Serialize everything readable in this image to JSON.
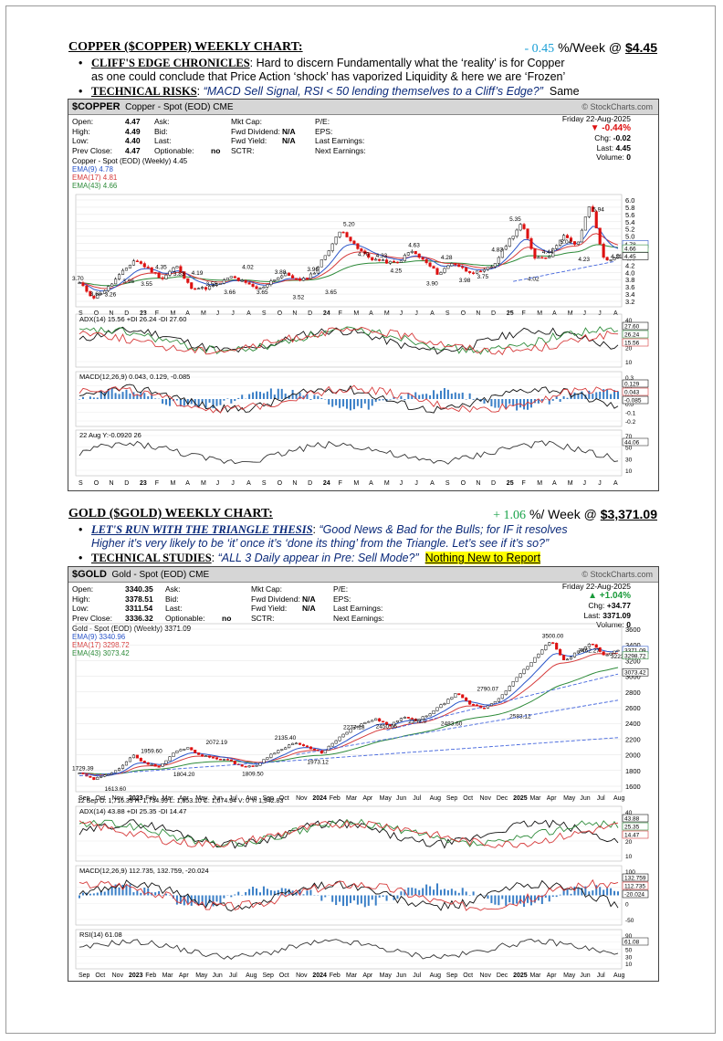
{
  "copper": {
    "section_title": "COPPER ($COPPER) WEEKLY CHART",
    "colon": ":",
    "change": "- 0.45",
    "per_week": "%/Week @ ",
    "price": "$4.45",
    "bullets": [
      {
        "head": "CLIFF'S EDGE CHRONICLES",
        "text": ": Hard to discern Fundamentally what the ‘reality’ is for Copper",
        "text2": "as one could conclude that Price Action ‘shock’ has vaporized Liquidity & here we are ‘Frozen’"
      },
      {
        "head": "TECHNICAL RISKS",
        "colon": ":",
        "quote": "“MACD Sell Signal, RSI < 50 lending themselves to a Cliff’s Edge?”",
        "tail": "Same"
      }
    ],
    "chart": {
      "symbol": "$COPPER",
      "name": "Copper - Spot (EOD) CME",
      "stockcharts": "© StockCharts.com",
      "info_col1": [
        [
          "Open:",
          "4.47"
        ],
        [
          "High:",
          "4.49"
        ],
        [
          "Low:",
          "4.40"
        ],
        [
          "Prev Close:",
          "4.47"
        ]
      ],
      "info_col2": [
        [
          "Ask:",
          ""
        ],
        [
          "Bid:",
          ""
        ],
        [
          "Last:",
          ""
        ],
        [
          "Optionable:",
          "no"
        ]
      ],
      "info_col3": [
        [
          "Mkt Cap:",
          ""
        ],
        [
          "Fwd Dividend:",
          "N/A"
        ],
        [
          "Fwd Yield:",
          "N/A"
        ],
        [
          "SCTR:",
          ""
        ]
      ],
      "info_col4": [
        "P/E:",
        "EPS:",
        "Last Earnings:",
        "Next Earnings:"
      ],
      "date": "Friday  22-Aug-2025",
      "chg_pct": "▼ -0.44%",
      "chg_label": "Chg:",
      "chg_val": "-0.02",
      "last_label": "Last:",
      "last_val": "4.45",
      "vol_label": "Volume:",
      "vol_val": "0",
      "legend_title": "Copper - Spot (EOD) (Weekly) 4.45",
      "legend": [
        {
          "label": "EMA(9) 4.78",
          "color": "#2a55c9"
        },
        {
          "label": "EMA(17) 4.81",
          "color": "#d63a3a"
        },
        {
          "label": "EMA(43) 4.66",
          "color": "#2e8b3a"
        }
      ],
      "price_axis": [
        "6.0",
        "5.8",
        "5.6",
        "5.4",
        "5.2",
        "5.0",
        "4.8",
        "4.6",
        "4.4",
        "4.2",
        "4.0",
        "3.8",
        "3.6",
        "3.4",
        "3.2"
      ],
      "right_tags": [
        "4.78",
        "4.66",
        "4.45"
      ],
      "annotations": [
        "3.70",
        "3.60",
        "3.26",
        "3.96",
        "3.55",
        "4.35",
        "3.83",
        "4.19",
        "3.55",
        "3.66",
        "4.02",
        "3.65",
        "3.88",
        "3.52",
        "3.96",
        "3.65",
        "5.20",
        "4.70",
        "4.33",
        "4.25",
        "4.63",
        "3.90",
        "4.28",
        "3.98",
        "3.75",
        "4.83",
        "5.35",
        "4.02",
        "4.44",
        "5.04",
        "4.23",
        "5.94",
        "4.31"
      ],
      "months": [
        "S",
        "O",
        "N",
        "D",
        "23",
        "F",
        "M",
        "A",
        "M",
        "J",
        "J",
        "A",
        "S",
        "O",
        "N",
        "D",
        "24",
        "F",
        "M",
        "A",
        "M",
        "J",
        "J",
        "A",
        "S",
        "O",
        "N",
        "D",
        "25",
        "F",
        "M",
        "A",
        "M",
        "J",
        "J",
        "A"
      ],
      "adx": {
        "label": "ADX(14) 15.56",
        "plus": "+DI 26.24",
        "minus": "-DI 27.60",
        "axis": [
          "40",
          "30",
          "20",
          "10"
        ],
        "tags": [
          "27.60",
          "26.24",
          "15.56"
        ]
      },
      "macd": {
        "label": "MACD(12,26,9) 0.043,",
        "signal": "0.129,",
        "hist": "-0.085",
        "axis": [
          "0.3",
          "0.2",
          "0.1",
          "0.0",
          "-0.1",
          "-0.2"
        ],
        "tags": [
          "0.129",
          "0.043",
          "-0.085"
        ]
      },
      "rsi": {
        "label": "22 Aug Y:-0.0920 26",
        "axis": [
          "70",
          "50",
          "30",
          "10"
        ],
        "tag": "44.06"
      }
    }
  },
  "gold": {
    "section_title": "GOLD ($GOLD) WEEKLY CHART:",
    "change": "+ 1.06",
    "per_week": "%/ Week @ ",
    "price": "$3,371.09",
    "bullets": [
      {
        "head": "LET'S RUN WITH THE TRIANGLE THESIS",
        "colon": ":",
        "quote": "“Good News & Bad for the Bulls; for IF it resolves",
        "quote2": "Higher it’s very likely to be ‘it’ once it’s ‘done its thing’ from the Triangle. Let’s see if it’s so?”"
      },
      {
        "head": "TECHNICAL STUDIES",
        "colon": ":",
        "quote": "“ALL 3 Daily appear in Pre: Sell Mode?”",
        "highlight": "Nothing New to Report"
      }
    ],
    "chart": {
      "symbol": "$GOLD",
      "name": "Gold - Spot (EOD) CME",
      "stockcharts": "© StockCharts.com",
      "info_col1": [
        [
          "Open:",
          "3340.35"
        ],
        [
          "High:",
          "3378.51"
        ],
        [
          "Low:",
          "3311.54"
        ],
        [
          "Prev Close:",
          "3336.32"
        ]
      ],
      "info_col2": [
        [
          "Ask:",
          ""
        ],
        [
          "Bid:",
          ""
        ],
        [
          "Last:",
          ""
        ],
        [
          "Optionable:",
          "no"
        ]
      ],
      "info_col3": [
        [
          "Mkt Cap:",
          ""
        ],
        [
          "Fwd Dividend:",
          "N/A"
        ],
        [
          "Fwd Yield:",
          "N/A"
        ],
        [
          "SCTR:",
          ""
        ]
      ],
      "info_col4": [
        "P/E:",
        "EPS:",
        "Last Earnings:",
        "Next Earnings:"
      ],
      "date": "Friday  22-Aug-2025",
      "chg_pct": "▲ +1.04%",
      "chg_label": "Chg:",
      "chg_val": "+34.77",
      "last_label": "Last:",
      "last_val": "3371.09",
      "vol_label": "Volume:",
      "vol_val": "0",
      "legend_title": "Gold - Spot (EOD) (Weekly) 3371.09",
      "legend": [
        {
          "label": "EMA(9) 3340.96",
          "color": "#2a55c9"
        },
        {
          "label": "EMA(17) 3298.72",
          "color": "#d63a3a"
        },
        {
          "label": "EMA(43) 3073.42",
          "color": "#2e8b3a"
        }
      ],
      "price_axis": [
        "3600",
        "3400",
        "3200",
        "3000",
        "2800",
        "2600",
        "2400",
        "2200",
        "2000",
        "1800",
        "1600"
      ],
      "right_tags": [
        "3371.09",
        "3298.72",
        "3073.42"
      ],
      "annotations": [
        "1729.39",
        "1613.60",
        "1959.60",
        "1804.20",
        "2072.19",
        "1809.50",
        "2135.40",
        "1973.12",
        "2277.18",
        "2450.05",
        "2353.0",
        "2483.60",
        "2790.07",
        "2583.12",
        "3500.00",
        "3462.27",
        "3223.15"
      ],
      "ohlc_line": "12 Sep O: 1,716.39  H: 1,734.99  L: 1,653.10  C: 1,674.94  V: 0   Y: 1,942.83",
      "months": [
        "Sep",
        "Oct",
        "Nov",
        "2023",
        "Feb",
        "Mar",
        "Apr",
        "May",
        "Jun",
        "Jul",
        "Aug",
        "Sep",
        "Oct",
        "Nov",
        "2024",
        "Feb",
        "Mar",
        "Apr",
        "May",
        "Jun",
        "Jul",
        "Aug",
        "Sep",
        "Oct",
        "Nov",
        "Dec",
        "2025",
        "Mar",
        "Apr",
        "May",
        "Jun",
        "Jul",
        "Aug"
      ],
      "top_months": [
        "24",
        "Feb",
        "Mar",
        "Apr",
        "May",
        "Jun",
        "Jul",
        "Aug",
        "Sep",
        "Oct",
        "Nov",
        "Dec",
        "2025",
        "Mar",
        "Apr",
        "May",
        "Jun",
        "Jul",
        "Aug"
      ],
      "adx": {
        "label": "ADX(14) 43.88",
        "plus": "+DI 25.35",
        "minus": "-DI 14.47",
        "axis": [
          "40",
          "30",
          "20",
          "10"
        ],
        "tags": [
          "43.88",
          "25.35",
          "14.47"
        ]
      },
      "macd": {
        "label": "MACD(12,26,9) 112.735,",
        "signal": "132.759,",
        "hist": "-20.024",
        "axis": [
          "100",
          "50",
          "0",
          "-50"
        ],
        "tags": [
          "132.759",
          "112.735",
          "-20.024"
        ]
      },
      "rsi": {
        "label": "RSI(14) 61.08",
        "axis": [
          "90",
          "70",
          "50",
          "30",
          "10"
        ],
        "tag": "61.08"
      }
    }
  }
}
